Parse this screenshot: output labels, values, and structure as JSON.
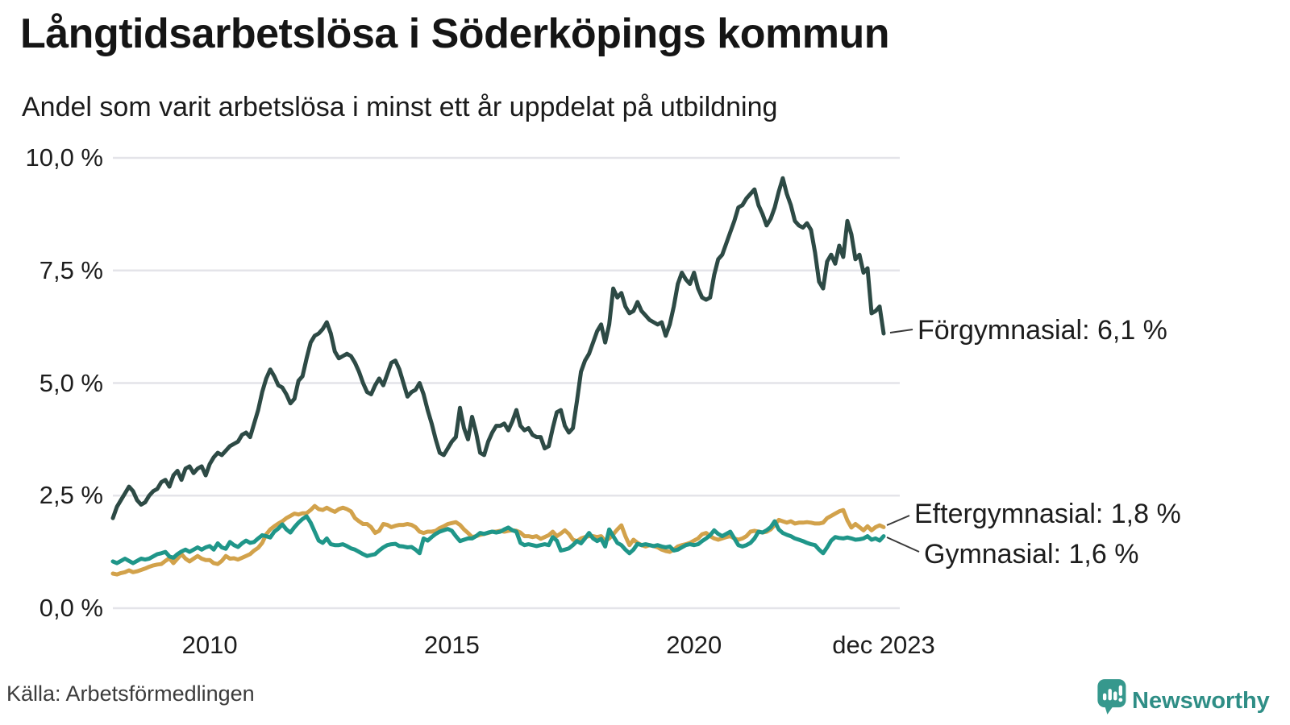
{
  "header": {
    "title": "Långtidsarbetslösa i Söderköpings kommun",
    "subtitle": "Andel som varit arbetslösa i minst ett år uppdelat på utbildning"
  },
  "source": {
    "label": "Källa: Arbetsförmedlingen"
  },
  "branding": {
    "name": "Newsworthy",
    "icon_color": "#36988d",
    "text_color": "#2f8e86"
  },
  "chart_data": {
    "type": "line",
    "title": "Långtidsarbetslösa i Söderköpings kommun",
    "subtitle": "Andel som varit arbetslösa i minst ett år uppdelat på utbildning",
    "unit": "%",
    "frequency": "monthly",
    "x_start": "2008-01",
    "x_end": "2023-12",
    "ylim": [
      0,
      10
    ],
    "grid": true,
    "grid_color": "#e4e4e9",
    "y_ticks": [
      {
        "label": "10,0 %",
        "value": 10
      },
      {
        "label": "7,5 %",
        "value": 7.5
      },
      {
        "label": "5,0 %",
        "value": 5
      },
      {
        "label": "2,5 %",
        "value": 2.5
      },
      {
        "label": "0,0 %",
        "value": 0
      }
    ],
    "x_ticks": [
      {
        "label": "2010",
        "month_index": 24
      },
      {
        "label": "2015",
        "month_index": 84
      },
      {
        "label": "2020",
        "month_index": 144
      },
      {
        "label": "dec 2023",
        "month_index": 191
      }
    ],
    "series": [
      {
        "name": "Förgymnasial",
        "end_label": "Förgymnasial: 6,1 %",
        "end_value": "6,1 %",
        "color": "#2d4a45",
        "values": [
          2.0,
          2.25,
          2.4,
          2.55,
          2.7,
          2.6,
          2.4,
          2.3,
          2.35,
          2.5,
          2.6,
          2.65,
          2.8,
          2.85,
          2.7,
          2.95,
          3.05,
          2.85,
          3.1,
          3.15,
          3.0,
          3.1,
          3.15,
          2.95,
          3.2,
          3.35,
          3.45,
          3.4,
          3.5,
          3.6,
          3.65,
          3.7,
          3.85,
          3.9,
          3.8,
          4.1,
          4.4,
          4.8,
          5.1,
          5.3,
          5.15,
          4.95,
          4.9,
          4.75,
          4.55,
          4.65,
          5.05,
          5.15,
          5.55,
          5.9,
          6.05,
          6.1,
          6.2,
          6.35,
          6.1,
          5.7,
          5.55,
          5.6,
          5.65,
          5.6,
          5.45,
          5.25,
          5.0,
          4.8,
          4.75,
          4.95,
          5.1,
          4.95,
          5.2,
          5.45,
          5.5,
          5.3,
          5.0,
          4.7,
          4.8,
          4.85,
          5.0,
          4.75,
          4.4,
          4.1,
          3.75,
          3.45,
          3.4,
          3.55,
          3.7,
          3.8,
          4.45,
          4.0,
          3.75,
          4.25,
          3.9,
          3.45,
          3.4,
          3.7,
          3.9,
          4.05,
          4.05,
          4.1,
          3.95,
          4.15,
          4.4,
          4.05,
          3.95,
          4.0,
          3.85,
          3.8,
          3.8,
          3.55,
          3.6,
          4.0,
          4.35,
          4.4,
          4.05,
          3.9,
          4.0,
          4.6,
          5.25,
          5.5,
          5.65,
          5.9,
          6.15,
          6.3,
          5.9,
          6.3,
          7.1,
          6.9,
          7.0,
          6.7,
          6.55,
          6.6,
          6.8,
          6.6,
          6.5,
          6.4,
          6.35,
          6.3,
          6.35,
          6.05,
          6.3,
          6.7,
          7.2,
          7.45,
          7.3,
          7.2,
          7.45,
          7.1,
          6.9,
          6.85,
          6.9,
          7.4,
          7.75,
          7.85,
          8.1,
          8.35,
          8.6,
          8.9,
          8.95,
          9.1,
          9.2,
          9.3,
          8.95,
          8.75,
          8.5,
          8.65,
          8.9,
          9.25,
          9.55,
          9.2,
          8.95,
          8.6,
          8.5,
          8.45,
          8.55,
          8.4,
          7.9,
          7.25,
          7.1,
          7.7,
          7.85,
          7.65,
          8.05,
          7.8,
          8.6,
          8.3,
          7.75,
          7.85,
          7.45,
          7.55,
          6.55,
          6.6,
          6.7,
          6.1
        ]
      },
      {
        "name": "Eftergymnasial",
        "end_label": "Eftergymnasial: 1,8 %",
        "end_value": "1,8 %",
        "color": "#d2a24b",
        "values": [
          0.77,
          0.75,
          0.78,
          0.8,
          0.84,
          0.8,
          0.82,
          0.85,
          0.88,
          0.92,
          0.95,
          0.97,
          0.98,
          1.05,
          1.11,
          1.0,
          1.1,
          1.2,
          1.1,
          1.04,
          1.1,
          1.16,
          1.1,
          1.07,
          1.07,
          1.0,
          0.98,
          1.05,
          1.16,
          1.1,
          1.11,
          1.08,
          1.12,
          1.16,
          1.2,
          1.28,
          1.34,
          1.45,
          1.64,
          1.75,
          1.82,
          1.88,
          1.93,
          2.0,
          2.05,
          2.1,
          2.08,
          2.11,
          2.11,
          2.18,
          2.27,
          2.2,
          2.18,
          2.23,
          2.18,
          2.14,
          2.2,
          2.23,
          2.2,
          2.15,
          2.0,
          1.93,
          1.87,
          1.87,
          1.8,
          1.67,
          1.72,
          1.87,
          1.85,
          1.8,
          1.83,
          1.85,
          1.85,
          1.87,
          1.85,
          1.8,
          1.7,
          1.67,
          1.7,
          1.7,
          1.72,
          1.78,
          1.82,
          1.87,
          1.89,
          1.91,
          1.85,
          1.75,
          1.67,
          1.58,
          1.6,
          1.63,
          1.65,
          1.67,
          1.7,
          1.7,
          1.72,
          1.7,
          1.72,
          1.73,
          1.72,
          1.68,
          1.6,
          1.6,
          1.58,
          1.6,
          1.54,
          1.58,
          1.62,
          1.7,
          1.6,
          1.66,
          1.73,
          1.65,
          1.52,
          1.49,
          1.55,
          1.58,
          1.6,
          1.6,
          1.58,
          1.6,
          1.49,
          1.55,
          1.64,
          1.75,
          1.84,
          1.6,
          1.4,
          1.52,
          1.45,
          1.4,
          1.37,
          1.4,
          1.38,
          1.35,
          1.3,
          1.27,
          1.25,
          1.3,
          1.37,
          1.4,
          1.42,
          1.45,
          1.5,
          1.55,
          1.64,
          1.67,
          1.6,
          1.55,
          1.52,
          1.55,
          1.58,
          1.6,
          1.55,
          1.52,
          1.55,
          1.6,
          1.7,
          1.72,
          1.7,
          1.68,
          1.7,
          1.75,
          1.85,
          1.96,
          1.93,
          1.9,
          1.93,
          1.88,
          1.9,
          1.9,
          1.91,
          1.9,
          1.88,
          1.88,
          1.9,
          2.0,
          2.05,
          2.1,
          2.15,
          2.18,
          1.95,
          1.79,
          1.87,
          1.8,
          1.73,
          1.82,
          1.73,
          1.8,
          1.84,
          1.8
        ]
      },
      {
        "name": "Gymnasial",
        "end_label": "Gymnasial: 1,6 %",
        "end_value": "1,6 %",
        "color": "#1f9689",
        "values": [
          1.04,
          1.0,
          1.05,
          1.1,
          1.05,
          1.0,
          1.05,
          1.1,
          1.08,
          1.1,
          1.15,
          1.2,
          1.22,
          1.25,
          1.15,
          1.12,
          1.2,
          1.26,
          1.3,
          1.25,
          1.3,
          1.35,
          1.3,
          1.35,
          1.38,
          1.3,
          1.44,
          1.35,
          1.32,
          1.47,
          1.4,
          1.36,
          1.44,
          1.5,
          1.45,
          1.47,
          1.55,
          1.62,
          1.6,
          1.57,
          1.7,
          1.77,
          1.86,
          1.75,
          1.68,
          1.8,
          1.9,
          1.98,
          2.04,
          1.9,
          1.7,
          1.5,
          1.45,
          1.55,
          1.42,
          1.4,
          1.4,
          1.42,
          1.38,
          1.33,
          1.3,
          1.25,
          1.2,
          1.16,
          1.18,
          1.2,
          1.28,
          1.35,
          1.4,
          1.42,
          1.43,
          1.38,
          1.37,
          1.35,
          1.36,
          1.3,
          1.22,
          1.55,
          1.5,
          1.58,
          1.65,
          1.7,
          1.73,
          1.76,
          1.72,
          1.6,
          1.49,
          1.52,
          1.55,
          1.55,
          1.6,
          1.67,
          1.65,
          1.68,
          1.7,
          1.68,
          1.7,
          1.75,
          1.79,
          1.73,
          1.7,
          1.45,
          1.4,
          1.42,
          1.4,
          1.38,
          1.4,
          1.42,
          1.4,
          1.58,
          1.5,
          1.28,
          1.3,
          1.33,
          1.4,
          1.49,
          1.44,
          1.55,
          1.67,
          1.55,
          1.49,
          1.54,
          1.37,
          1.75,
          1.6,
          1.45,
          1.4,
          1.3,
          1.22,
          1.3,
          1.43,
          1.4,
          1.42,
          1.4,
          1.38,
          1.4,
          1.37,
          1.35,
          1.37,
          1.28,
          1.3,
          1.35,
          1.4,
          1.42,
          1.4,
          1.42,
          1.49,
          1.55,
          1.62,
          1.73,
          1.65,
          1.6,
          1.65,
          1.7,
          1.55,
          1.4,
          1.37,
          1.4,
          1.45,
          1.55,
          1.7,
          1.68,
          1.73,
          1.8,
          1.93,
          1.75,
          1.67,
          1.63,
          1.6,
          1.55,
          1.52,
          1.49,
          1.45,
          1.42,
          1.4,
          1.3,
          1.22,
          1.35,
          1.5,
          1.58,
          1.56,
          1.55,
          1.57,
          1.55,
          1.52,
          1.53,
          1.55,
          1.6,
          1.52,
          1.55,
          1.5,
          1.6
        ]
      }
    ]
  }
}
